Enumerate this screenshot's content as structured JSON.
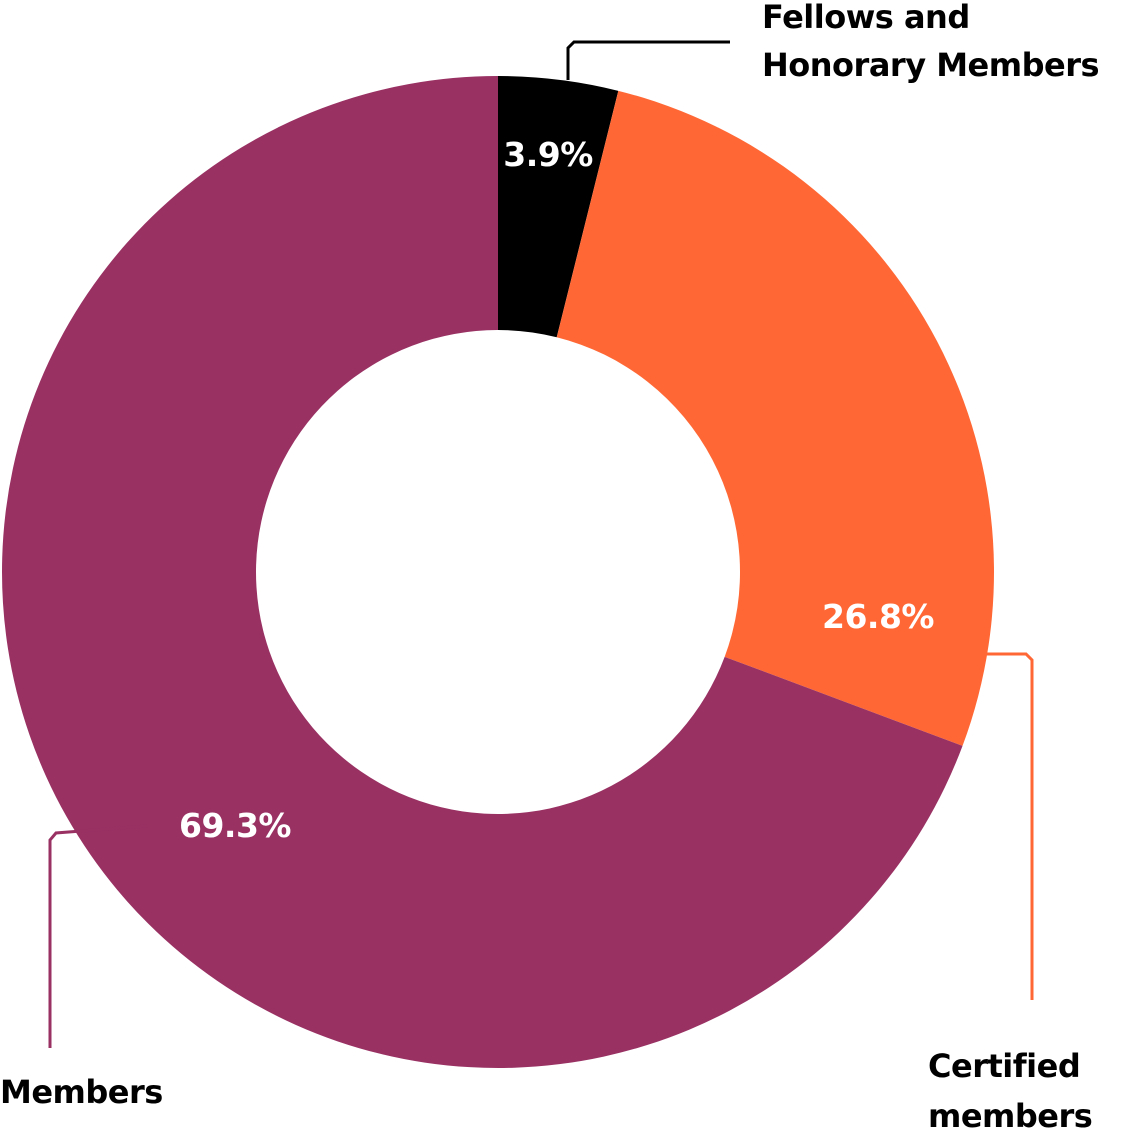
{
  "chart_data": {
    "type": "pie",
    "donut": true,
    "title": "",
    "slices": [
      {
        "category": "Fellows and Honorary Members",
        "label_lines": [
          "Fellows and",
          "Honorary Members"
        ],
        "value": 3.9,
        "value_label": "3.9%",
        "color": "#000000"
      },
      {
        "category": "Certified members",
        "label_lines": [
          "Certified",
          "members"
        ],
        "value": 26.8,
        "value_label": "26.8%",
        "color": "#FF6835"
      },
      {
        "category": "Members",
        "label_lines": [
          "Members"
        ],
        "value": 69.3,
        "value_label": "69.3%",
        "color": "#993163"
      }
    ]
  }
}
